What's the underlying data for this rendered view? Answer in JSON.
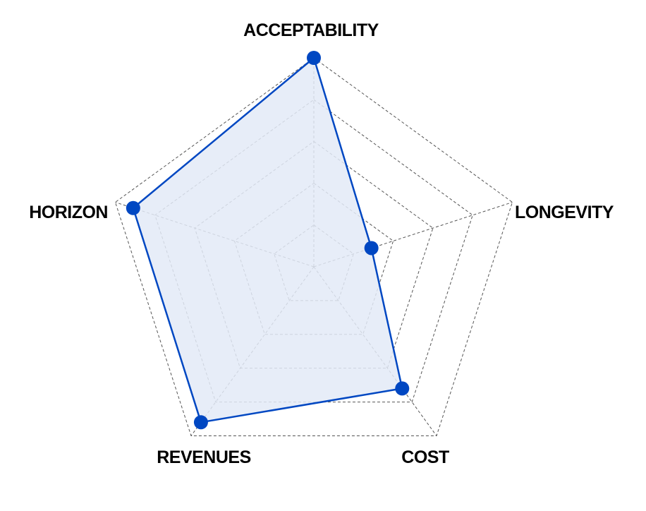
{
  "chart_data": {
    "type": "radar",
    "axes": [
      "ACCEPTABILITY",
      "LONGEVITY",
      "COST",
      "REVENUES",
      "HORIZON"
    ],
    "values": [
      5,
      1.45,
      3.6,
      4.6,
      4.55
    ],
    "range": [
      0,
      5
    ],
    "grid_levels": 5,
    "grid": true,
    "colors": {
      "line": "#0047c2",
      "fill": "#e3eaf7",
      "marker": "#0047c2",
      "grid": "#555555"
    }
  }
}
